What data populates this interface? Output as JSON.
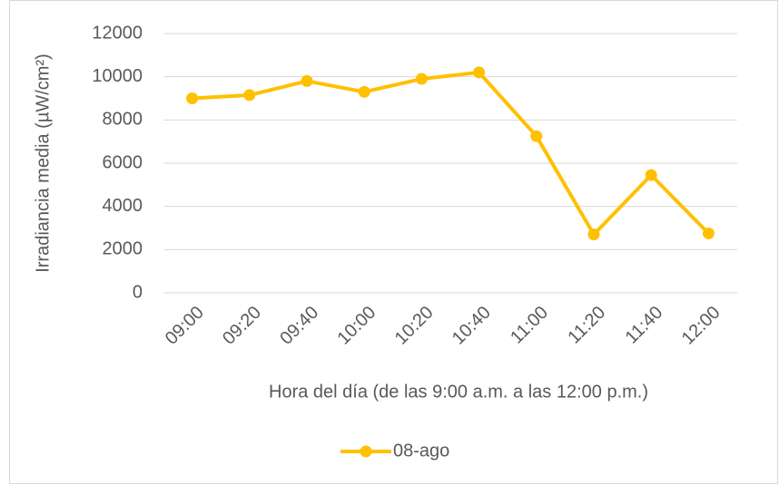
{
  "chart_data": {
    "type": "line",
    "x_label": "Hora del día (de las 9:00 a.m. a las 12:00 p.m.)",
    "y_label": "Irradiancia media (µW/cm²)",
    "categories": [
      "09:00",
      "09:20",
      "09:40",
      "10:00",
      "10:20",
      "10:40",
      "11:00",
      "11:20",
      "11:40",
      "12:00"
    ],
    "series": [
      {
        "name": "08-ago",
        "color": "#ffc000",
        "values": [
          9000,
          9150,
          9800,
          9300,
          9900,
          10200,
          7250,
          2700,
          5450,
          2750
        ]
      }
    ],
    "ylim": [
      0,
      12000
    ],
    "yticks": [
      0,
      2000,
      4000,
      6000,
      8000,
      10000,
      12000
    ],
    "grid": true,
    "legend": "bottom"
  }
}
